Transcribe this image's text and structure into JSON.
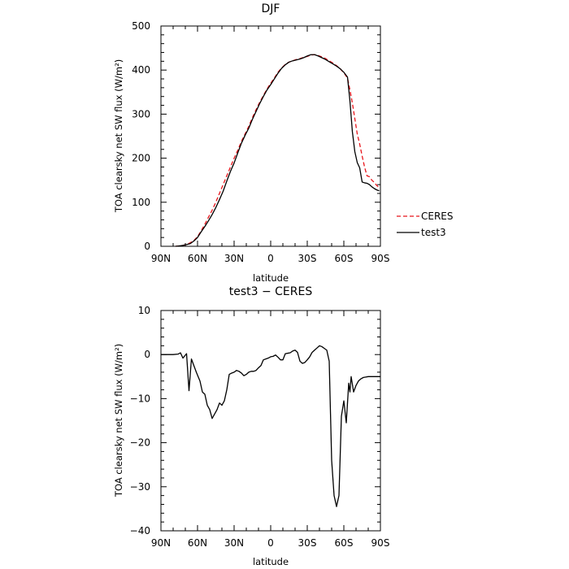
{
  "chart_data": [
    {
      "type": "line",
      "title": "DJF",
      "xlabel": "latitude",
      "ylabel": "TOA clearsky net SW flux (W/m²)",
      "xlim": [
        -90,
        90
      ],
      "ylim": [
        0,
        500
      ],
      "x_ticks": [
        -90,
        -60,
        -30,
        0,
        30,
        60,
        90
      ],
      "x_tick_labels": [
        "90N",
        "60N",
        "30N",
        "0",
        "30S",
        "60S",
        "90S"
      ],
      "y_ticks": [
        0,
        100,
        200,
        300,
        400,
        500
      ],
      "y_tick_labels": [
        "0",
        "100",
        "200",
        "300",
        "400",
        "500"
      ],
      "legend_position": "right, below plot top",
      "series": [
        {
          "name": "CERES",
          "color": "#e8141a",
          "dash": "dashed",
          "x": [
            -78,
            -75,
            -72,
            -69,
            -66,
            -63,
            -60,
            -57,
            -54,
            -51,
            -48,
            -45,
            -42,
            -39,
            -36,
            -33,
            -30,
            -27,
            -24,
            -21,
            -18,
            -15,
            -12,
            -9,
            -6,
            -3,
            0,
            3,
            6,
            9,
            12,
            15,
            18,
            21,
            24,
            27,
            30,
            33,
            36,
            39,
            42,
            45,
            48,
            51,
            54,
            57,
            60,
            63,
            65,
            67,
            69,
            71,
            73,
            75,
            77,
            79,
            81,
            83,
            85,
            87,
            89
          ],
          "y": [
            0,
            1,
            2,
            4,
            8,
            13,
            22,
            35,
            50,
            66,
            82,
            100,
            120,
            140,
            160,
            180,
            200,
            218,
            238,
            255,
            272,
            292,
            310,
            327,
            342,
            357,
            370,
            382,
            395,
            405,
            413,
            418,
            421,
            424,
            426,
            429,
            431,
            434,
            435,
            433,
            430,
            426,
            421,
            416,
            410,
            403,
            394,
            382,
            355,
            325,
            290,
            255,
            232,
            205,
            180,
            160,
            158,
            150,
            145,
            138,
            133
          ]
        },
        {
          "name": "test3",
          "color": "#000000",
          "dash": "solid",
          "x": [
            -78,
            -75,
            -72,
            -69,
            -66,
            -63,
            -60,
            -57,
            -54,
            -51,
            -48,
            -45,
            -42,
            -39,
            -36,
            -33,
            -30,
            -27,
            -24,
            -21,
            -18,
            -15,
            -12,
            -9,
            -6,
            -3,
            0,
            3,
            6,
            9,
            12,
            15,
            18,
            21,
            24,
            27,
            30,
            33,
            36,
            39,
            42,
            45,
            48,
            51,
            54,
            57,
            60,
            63,
            65,
            67,
            69,
            71,
            73,
            75,
            77,
            79,
            81,
            83,
            85,
            87,
            89
          ],
          "y": [
            0,
            1,
            2,
            4,
            6,
            12,
            20,
            33,
            45,
            58,
            72,
            88,
            106,
            125,
            148,
            170,
            189,
            212,
            234,
            252,
            268,
            288,
            306,
            324,
            340,
            355,
            367,
            380,
            393,
            404,
            412,
            418,
            421,
            423,
            425,
            428,
            432,
            435,
            435,
            432,
            428,
            424,
            419,
            414,
            409,
            403,
            395,
            384,
            330,
            260,
            215,
            190,
            178,
            146,
            144,
            143,
            140,
            135,
            131,
            128,
            126
          ]
        }
      ]
    },
    {
      "type": "line",
      "title": "test3 − CERES",
      "xlabel": "latitude",
      "ylabel": "TOA clearsky net SW flux (W/m²)",
      "xlim": [
        -90,
        90
      ],
      "ylim": [
        -40,
        10
      ],
      "x_ticks": [
        -90,
        -60,
        -30,
        0,
        30,
        60,
        90
      ],
      "x_tick_labels": [
        "90N",
        "60N",
        "30N",
        "0",
        "30S",
        "60S",
        "90S"
      ],
      "y_ticks": [
        -40,
        -30,
        -20,
        -10,
        0,
        10
      ],
      "y_tick_labels": [
        "−40",
        "−30",
        "−20",
        "−10",
        "0",
        "10"
      ],
      "series": [
        {
          "color": "#000000",
          "dash": "solid",
          "x": [
            -90,
            -80,
            -76,
            -74,
            -72,
            -69,
            -67,
            -65,
            -63,
            -61,
            -58,
            -56,
            -54,
            -52,
            -50,
            -48,
            -46,
            -44,
            -42,
            -40,
            -38,
            -36,
            -34,
            -32,
            -30,
            -28,
            -26,
            -24,
            -22,
            -20,
            -18,
            -16,
            -14,
            -12,
            -10,
            -8,
            -6,
            -4,
            -2,
            0,
            2,
            4,
            6,
            8,
            10,
            12,
            14,
            16,
            18,
            20,
            22,
            24,
            26,
            28,
            30,
            32,
            34,
            36,
            38,
            40,
            42,
            44,
            46,
            48,
            50,
            52,
            54,
            56,
            58,
            60,
            62,
            64,
            65,
            66,
            68,
            70,
            72,
            74,
            76,
            78,
            80,
            82,
            84,
            86,
            88,
            90
          ],
          "y": [
            0,
            0,
            0.1,
            0.4,
            -0.8,
            0.2,
            -8.2,
            -1.0,
            -2.5,
            -4.0,
            -6.0,
            -8.5,
            -9.0,
            -11.5,
            -12.5,
            -14.5,
            -13.5,
            -12.5,
            -11.0,
            -11.5,
            -10.5,
            -8.0,
            -4.5,
            -4.2,
            -4.0,
            -3.6,
            -3.8,
            -4.2,
            -4.8,
            -4.5,
            -4.0,
            -3.8,
            -3.8,
            -3.6,
            -3.0,
            -2.5,
            -1.2,
            -1.0,
            -0.8,
            -0.5,
            -0.4,
            -0.1,
            -0.6,
            -1.2,
            -1.2,
            0.2,
            0.3,
            0.4,
            0.8,
            1.0,
            0.5,
            -1.5,
            -2.0,
            -1.8,
            -1.2,
            -0.5,
            0.5,
            1.0,
            1.5,
            2.0,
            1.8,
            1.4,
            1.0,
            -1.5,
            -24.0,
            -32.0,
            -34.5,
            -32.0,
            -14.0,
            -10.5,
            -15.5,
            -6.5,
            -8.5,
            -5.0,
            -8.5,
            -7.0,
            -6.0,
            -5.5,
            -5.2,
            -5.1,
            -5.0,
            -5.0,
            -5.0,
            -5.0,
            -5.0,
            -5.0
          ]
        }
      ]
    }
  ]
}
